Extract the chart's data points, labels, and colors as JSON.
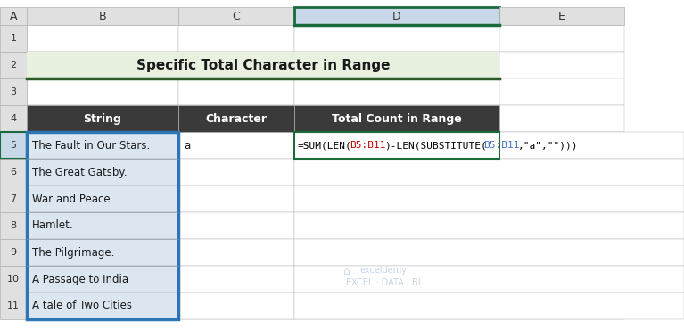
{
  "title": "Specific Total Character in Range",
  "title_bg": "#e8f0e0",
  "title_border": "#2d5a27",
  "col_headers": [
    "String",
    "Character",
    "Total Count in Range"
  ],
  "header_bg": "#3a3a3a",
  "header_fg": "#ffffff",
  "rows": [
    [
      "The Fault in Our Stars.",
      "a",
      "=SUM(LEN(B5:B11)-LEN(SUBSTITUTE(B5:B11,\"a\",\"\")))"
    ],
    [
      "The Great Gatsby.",
      "",
      ""
    ],
    [
      "War and Peace.",
      "",
      ""
    ],
    [
      "Hamlet.",
      "",
      ""
    ],
    [
      "The Pilgrimage.",
      "",
      ""
    ],
    [
      "A Passage to India",
      "",
      ""
    ],
    [
      "A tale of Two Cities",
      "",
      ""
    ]
  ],
  "row_bg": "#dce6f1",
  "row_border": "#2e75b6",
  "col_labels": [
    "A",
    "B",
    "C",
    "D",
    "E"
  ],
  "row_labels": [
    "1",
    "2",
    "3",
    "4",
    "5",
    "6",
    "7",
    "8",
    "9",
    "10",
    "11"
  ],
  "col_header_bg": "#e0e0e0",
  "row_header_bg": "#e0e0e0",
  "selected_col": "D",
  "formula_colors": {
    "normal": "#000000",
    "range1": "#c00000",
    "range2": "#4472c4"
  },
  "figure_bg": "#ffffff",
  "grid_line_color": "#b0b0b0",
  "watermark_text": "exceldemy\nEXCEL · DATA · BI",
  "watermark_color": "#b0c4de"
}
